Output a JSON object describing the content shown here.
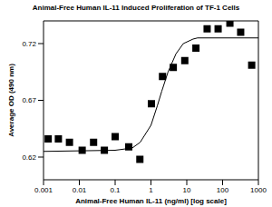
{
  "chart_data": {
    "type": "scatter",
    "title": "Animal-Free Human IL-11 Induced Proliferation of TF-1 Cells",
    "x_label": "Animal-Free Human IL-11 (ng/ml) [log scale]",
    "y_label": "Average OD (490 nm)",
    "log": "x",
    "grid": false,
    "xlim": [
      0.001,
      1000
    ],
    "xticks": [
      0.001,
      0.01,
      0.1,
      1,
      10,
      100,
      1000
    ],
    "ylim": [
      0.6,
      0.74
    ],
    "yticks": [
      0.62,
      0.67,
      0.72
    ],
    "series": [
      {
        "type": "scatter",
        "color": "#000000",
        "marker": "square",
        "x": [
          0.00135,
          0.0026,
          0.0053,
          0.012,
          0.025,
          0.05,
          0.1,
          0.24,
          0.49,
          1.03,
          2.1,
          4.2,
          8.8,
          18,
          37,
          75,
          160,
          320,
          650
        ],
        "values": [
          0.636,
          0.636,
          0.633,
          0.626,
          0.633,
          0.626,
          0.638,
          0.629,
          0.618,
          0.667,
          0.691,
          0.699,
          0.705,
          0.716,
          0.733,
          0.733,
          0.738,
          0.73,
          0.701
        ]
      },
      {
        "type": "line",
        "color": "#000000",
        "marker": "none",
        "line_style": "solid",
        "x": [
          0.001,
          0.1,
          0.3,
          0.5,
          1,
          1.5,
          2,
          3,
          5,
          8,
          15,
          20,
          1000
        ],
        "values": [
          0.625,
          0.626,
          0.628,
          0.633,
          0.648,
          0.665,
          0.678,
          0.695,
          0.711,
          0.72,
          0.724,
          0.725,
          0.725
        ]
      }
    ]
  }
}
